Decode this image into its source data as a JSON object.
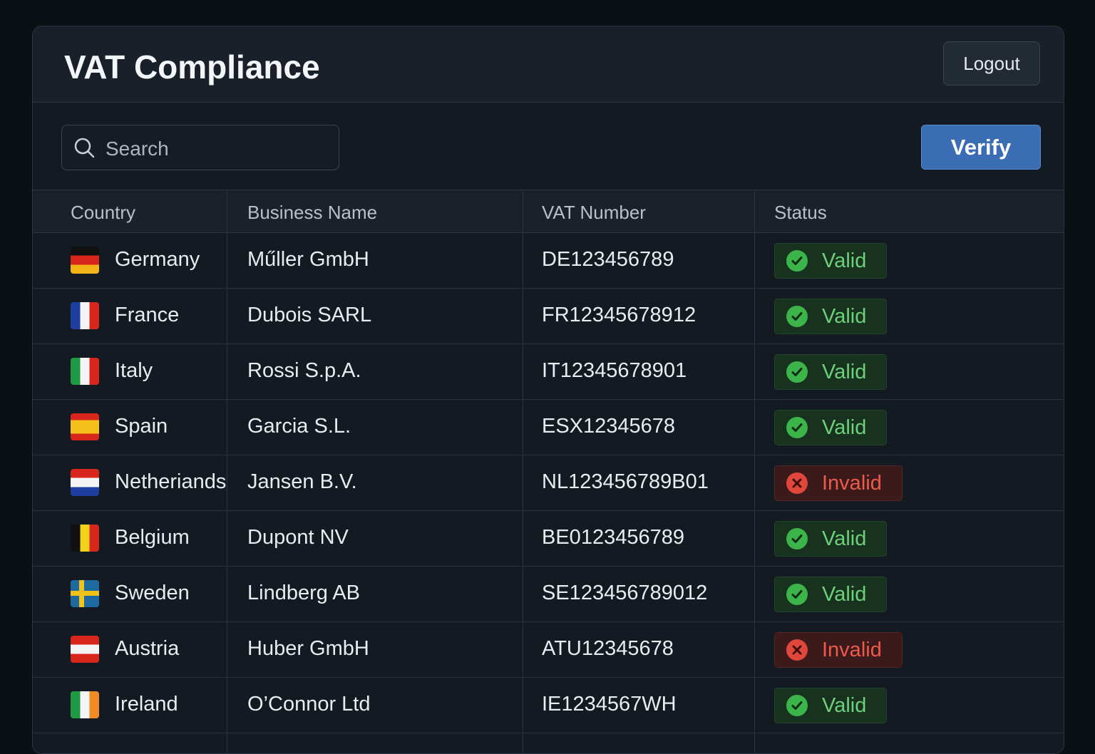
{
  "header": {
    "title": "VAT Compliance",
    "logout": "Logout"
  },
  "toolbar": {
    "search_placeholder": "Search",
    "verify": "Verify"
  },
  "table": {
    "columns": [
      "Country",
      "Business Name",
      "VAT Number",
      "Status"
    ],
    "rows": [
      [
        "Germany",
        "Műller GmbH",
        "DE123456789",
        "Valid"
      ],
      [
        "France",
        "Dubois SARL",
        "FR12345678912",
        "Valid"
      ],
      [
        "Italy",
        "Rossi S.p.A.",
        "IT12345678901",
        "Valid"
      ],
      [
        "Spain",
        "Garcia S.L.",
        "ESX12345678",
        "Valid"
      ],
      [
        "Netheriands",
        "Jansen B.V.",
        "NL123456789B01",
        "Invalid"
      ],
      [
        "Belgium",
        "Dupont NV",
        "BE0123456789",
        "Valid"
      ],
      [
        "Sweden",
        "Lindberg AB",
        "SE123456789012",
        "Valid"
      ],
      [
        "Austria",
        "Huber GmbH",
        "ATU12345678",
        "Invalid"
      ],
      [
        "Ireland",
        "O’Connor Ltd",
        "IE1234567WH",
        "Valid"
      ]
    ]
  }
}
